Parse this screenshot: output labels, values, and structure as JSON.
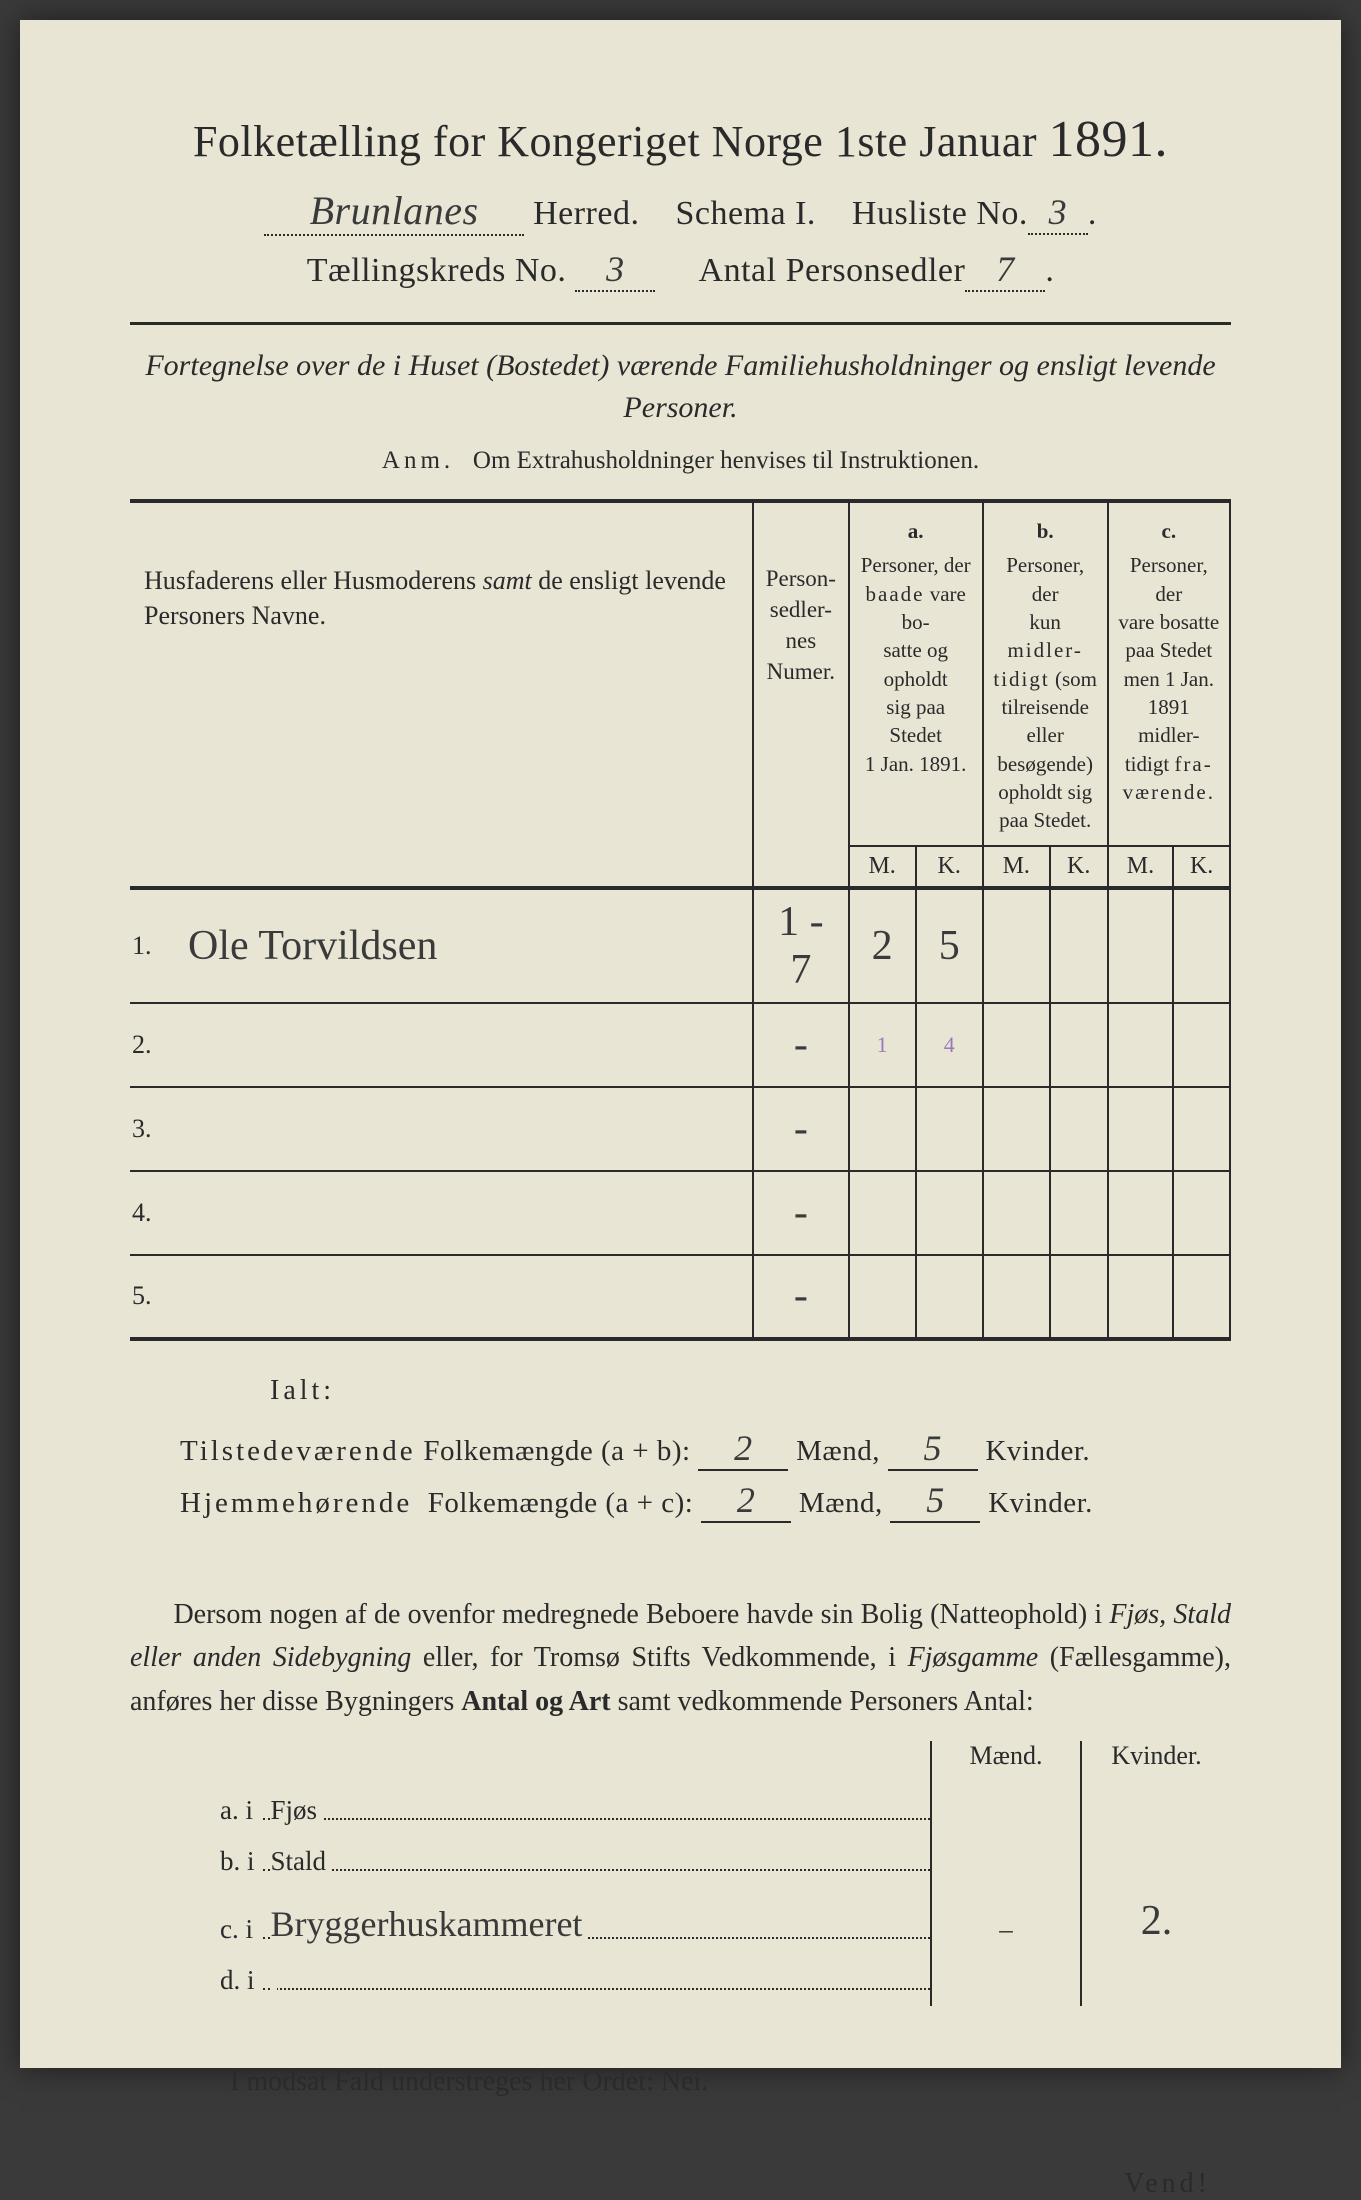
{
  "title": "Folketælling for Kongeriget Norge 1ste Januar",
  "year": "1891.",
  "header": {
    "herred_value": "Brunlanes",
    "herred_label": "Herred.",
    "schema_label": "Schema I.",
    "husliste_label": "Husliste No.",
    "husliste_value": "3",
    "kreds_label": "Tællingskreds No.",
    "kreds_value": "3",
    "antal_label": "Antal Personsedler",
    "antal_value": "7"
  },
  "subtitle": "Fortegnelse over de i Huset (Bostedet) værende Familiehusholdninger og ensligt levende Personer.",
  "anm_label": "Anm.",
  "anm_text": "Om Extrahusholdninger henvises til Instruktionen.",
  "columns": {
    "name": "Husfaderens eller Husmoderens samt de ensligt levende Personers Navne.",
    "num": "Person-\nsedler-\nnes\nNumer.",
    "a_label": "a.",
    "a_text": "Personer, der baade vare bosatte og opholdt sig paa Stedet 1 Jan. 1891.",
    "b_label": "b.",
    "b_text": "Personer, der kun midlertidigt (som tilreisende eller besøgende) opholdt sig paa Stedet.",
    "c_label": "c.",
    "c_text": "Personer, der vare bosatte paa Stedet men 1 Jan. 1891 midlertidigt fraværende.",
    "M": "M.",
    "K": "K."
  },
  "rows": [
    {
      "n": "1.",
      "name": "Ole Torvildsen",
      "num": "1 - 7",
      "aM": "2",
      "aK": "5",
      "bM": "",
      "bK": "",
      "cM": "",
      "cK": ""
    },
    {
      "n": "2.",
      "name": "",
      "num": "-",
      "aM": "",
      "aK": "",
      "bM": "",
      "bK": "",
      "cM": "",
      "cK": "",
      "purpleM": "1",
      "purpleK": "4"
    },
    {
      "n": "3.",
      "name": "",
      "num": "-",
      "aM": "",
      "aK": "",
      "bM": "",
      "bK": "",
      "cM": "",
      "cK": ""
    },
    {
      "n": "4.",
      "name": "",
      "num": "-",
      "aM": "",
      "aK": "",
      "bM": "",
      "bK": "",
      "cM": "",
      "cK": ""
    },
    {
      "n": "5.",
      "name": "",
      "num": "-",
      "aM": "",
      "aK": "",
      "bM": "",
      "bK": "",
      "cM": "",
      "cK": ""
    }
  ],
  "ialt": "Ialt:",
  "sum1": {
    "label_a": "Tilstedeværende",
    "label_b": "Folkemængde (a + b):",
    "m": "2",
    "m_label": "Mænd,",
    "k": "5",
    "k_label": "Kvinder."
  },
  "sum2": {
    "label_a": "Hjemmehørende",
    "label_b": "Folkemængde (a + c):",
    "m": "2",
    "m_label": "Mænd,",
    "k": "5",
    "k_label": "Kvinder."
  },
  "para": "Dersom nogen af de ovenfor medregnede Beboere havde sin Bolig (Natteophold) i Fjøs, Stald eller anden Sidebygning eller, for Tromsø Stifts Vedkommende, i Fjøsgamme (Fællesgamme), anføres her disse Bygningers Antal og Art samt vedkommende Personers Antal:",
  "mk": {
    "m": "Mænd.",
    "k": "Kvinder."
  },
  "dw": [
    {
      "key": "a.  i",
      "label": "Fjøs",
      "m": "",
      "k": ""
    },
    {
      "key": "b.  i",
      "label": "Stald",
      "m": "",
      "k": ""
    },
    {
      "key": "c.  i",
      "label": "Bryggerhuskammeret",
      "m": "–",
      "k": "2.",
      "handwritten": true
    },
    {
      "key": "d.  i",
      "label": "",
      "m": "",
      "k": ""
    }
  ],
  "nei": "I modsat Fald understreges her Ordet: Nei.",
  "vend": "Vend!"
}
